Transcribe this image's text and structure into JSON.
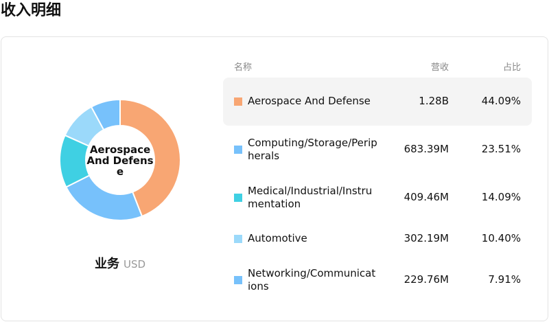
{
  "header": {
    "title": "收入明细"
  },
  "chart_data": {
    "type": "pie",
    "donut": true,
    "categories": [
      "Aerospace And Defense",
      "Computing/Storage/Peripherals",
      "Medical/Industrial/Instrumentation",
      "Automotive",
      "Networking/Communications"
    ],
    "values": [
      44.09,
      23.51,
      14.09,
      10.4,
      7.91
    ],
    "value_labels": [
      "44.09%",
      "23.51%",
      "14.09%",
      "10.40%",
      "7.91%"
    ],
    "colors": [
      "#f8a673",
      "#77c1fb",
      "#3fd0e3",
      "#9bd9fa",
      "#77c1fb"
    ],
    "caption": "业务",
    "unit": "USD"
  },
  "table": {
    "columns": [
      "名称",
      "营收",
      "占比"
    ],
    "revenue": [
      "1.28B",
      "683.39M",
      "409.46M",
      "302.19M",
      "229.76M"
    ]
  }
}
